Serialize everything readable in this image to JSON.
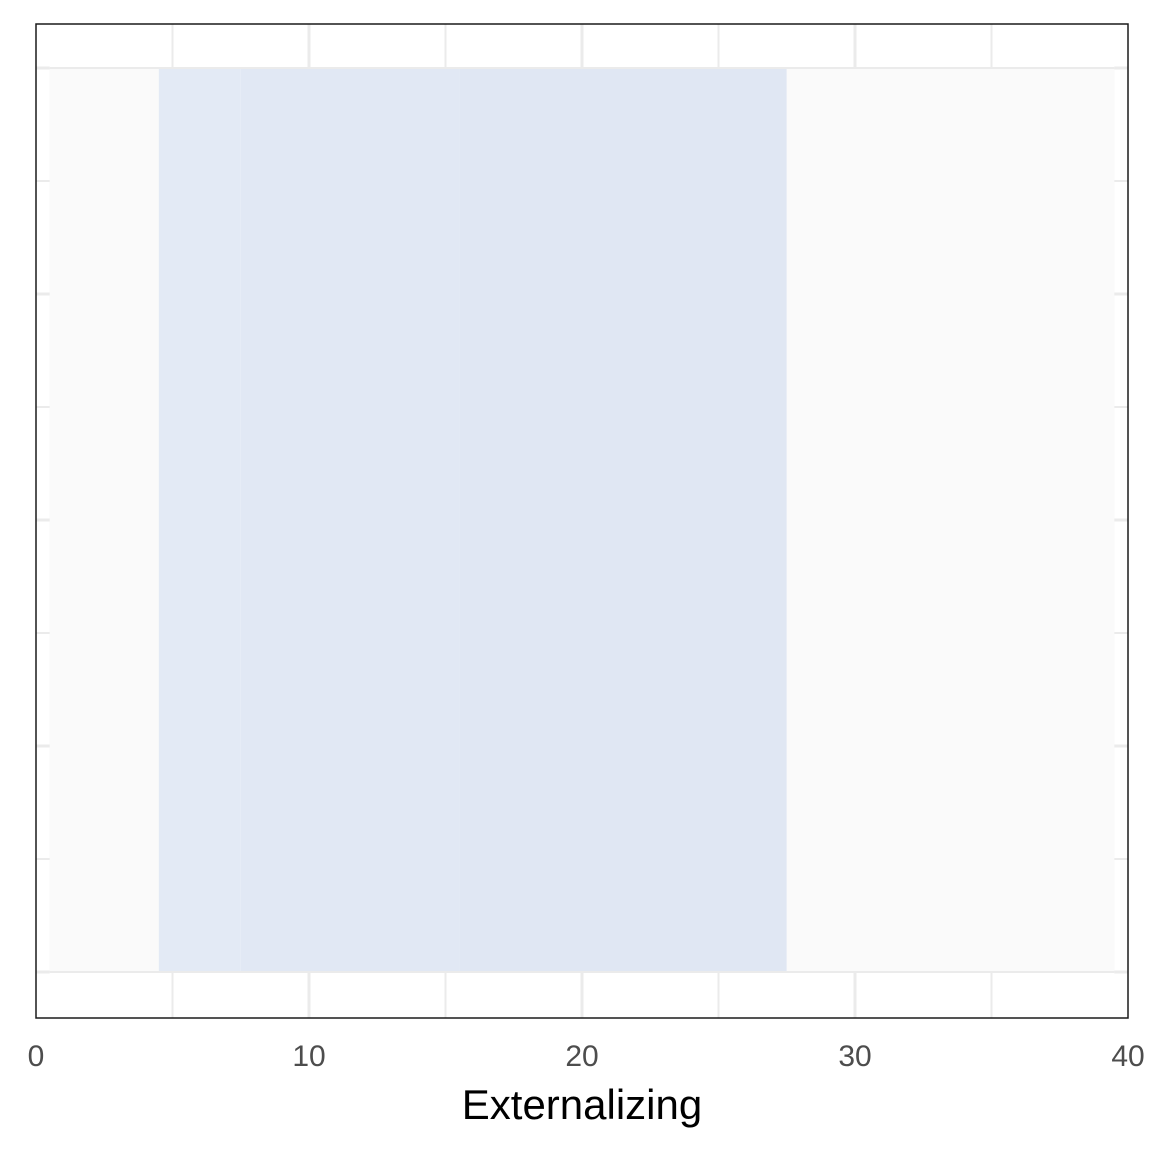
{
  "chart_data": {
    "type": "heatmap",
    "title": "",
    "xlabel": "Externalizing",
    "ylabel": "",
    "xlim": [
      0,
      40
    ],
    "x_ticks": [
      "0",
      "10",
      "20",
      "30",
      "40"
    ],
    "x_tick_values": [
      0,
      10,
      20,
      30,
      40
    ],
    "x_minor_gridlines": [
      5,
      15,
      25,
      35
    ],
    "grid": true,
    "legend": "none",
    "background_range": {
      "start": 0.5,
      "end": 39.5
    },
    "bands": [
      {
        "start": 0.5,
        "end": 4.5,
        "fill": "#fafafa"
      },
      {
        "start": 4.5,
        "end": 7.5,
        "fill": "#e3eaf5"
      },
      {
        "start": 7.5,
        "end": 15.5,
        "fill": "#e1e8f4"
      },
      {
        "start": 15.5,
        "end": 27.5,
        "fill": "#e0e7f3"
      },
      {
        "start": 27.5,
        "end": 39.5,
        "fill": "#fafafa"
      }
    ],
    "colors": {
      "panel_border": "#1a1a1a",
      "gridline": "#ebebeb",
      "tick_text": "#4d4d4d",
      "axis_title": "#000000"
    }
  }
}
